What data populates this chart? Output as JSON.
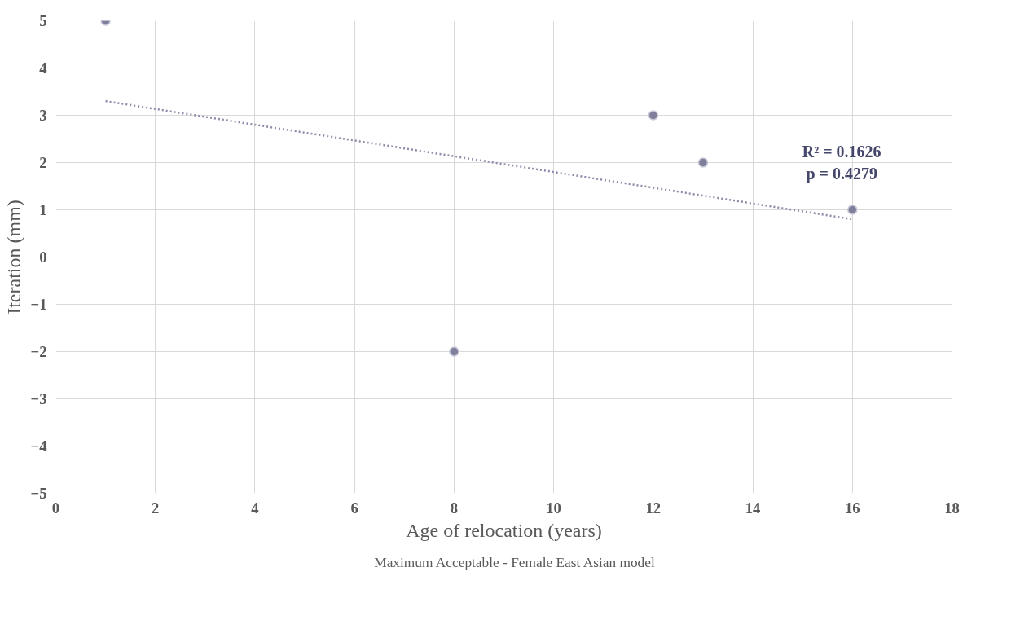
{
  "chart_data": {
    "type": "scatter",
    "xlabel": "Age of relocation (years)",
    "ylabel": "Iteration (mm)",
    "xlim": [
      0,
      18
    ],
    "xticks": [
      0,
      2,
      4,
      6,
      8,
      10,
      12,
      14,
      16,
      18
    ],
    "ylim": [
      -5,
      5
    ],
    "yticks": [
      -5,
      -4,
      -3,
      -2,
      -1,
      0,
      1,
      2,
      3,
      4,
      5
    ],
    "grid": true,
    "legend": "bottom",
    "marker": "circle",
    "series": [
      {
        "name": "Maximum Acceptable - Female East Asian model",
        "color": "#7f7f9c",
        "x": [
          1,
          8,
          12,
          13,
          16
        ],
        "values": [
          5,
          -2,
          3,
          2,
          1
        ]
      },
      {
        "type": "line",
        "line_style": "dotted",
        "marker": "none",
        "color": "#8c8cab",
        "x": [
          1,
          16
        ],
        "values": [
          3.3,
          0.8
        ]
      }
    ],
    "annotations": [
      "R² = 0.1626\np = 0.4279"
    ]
  }
}
